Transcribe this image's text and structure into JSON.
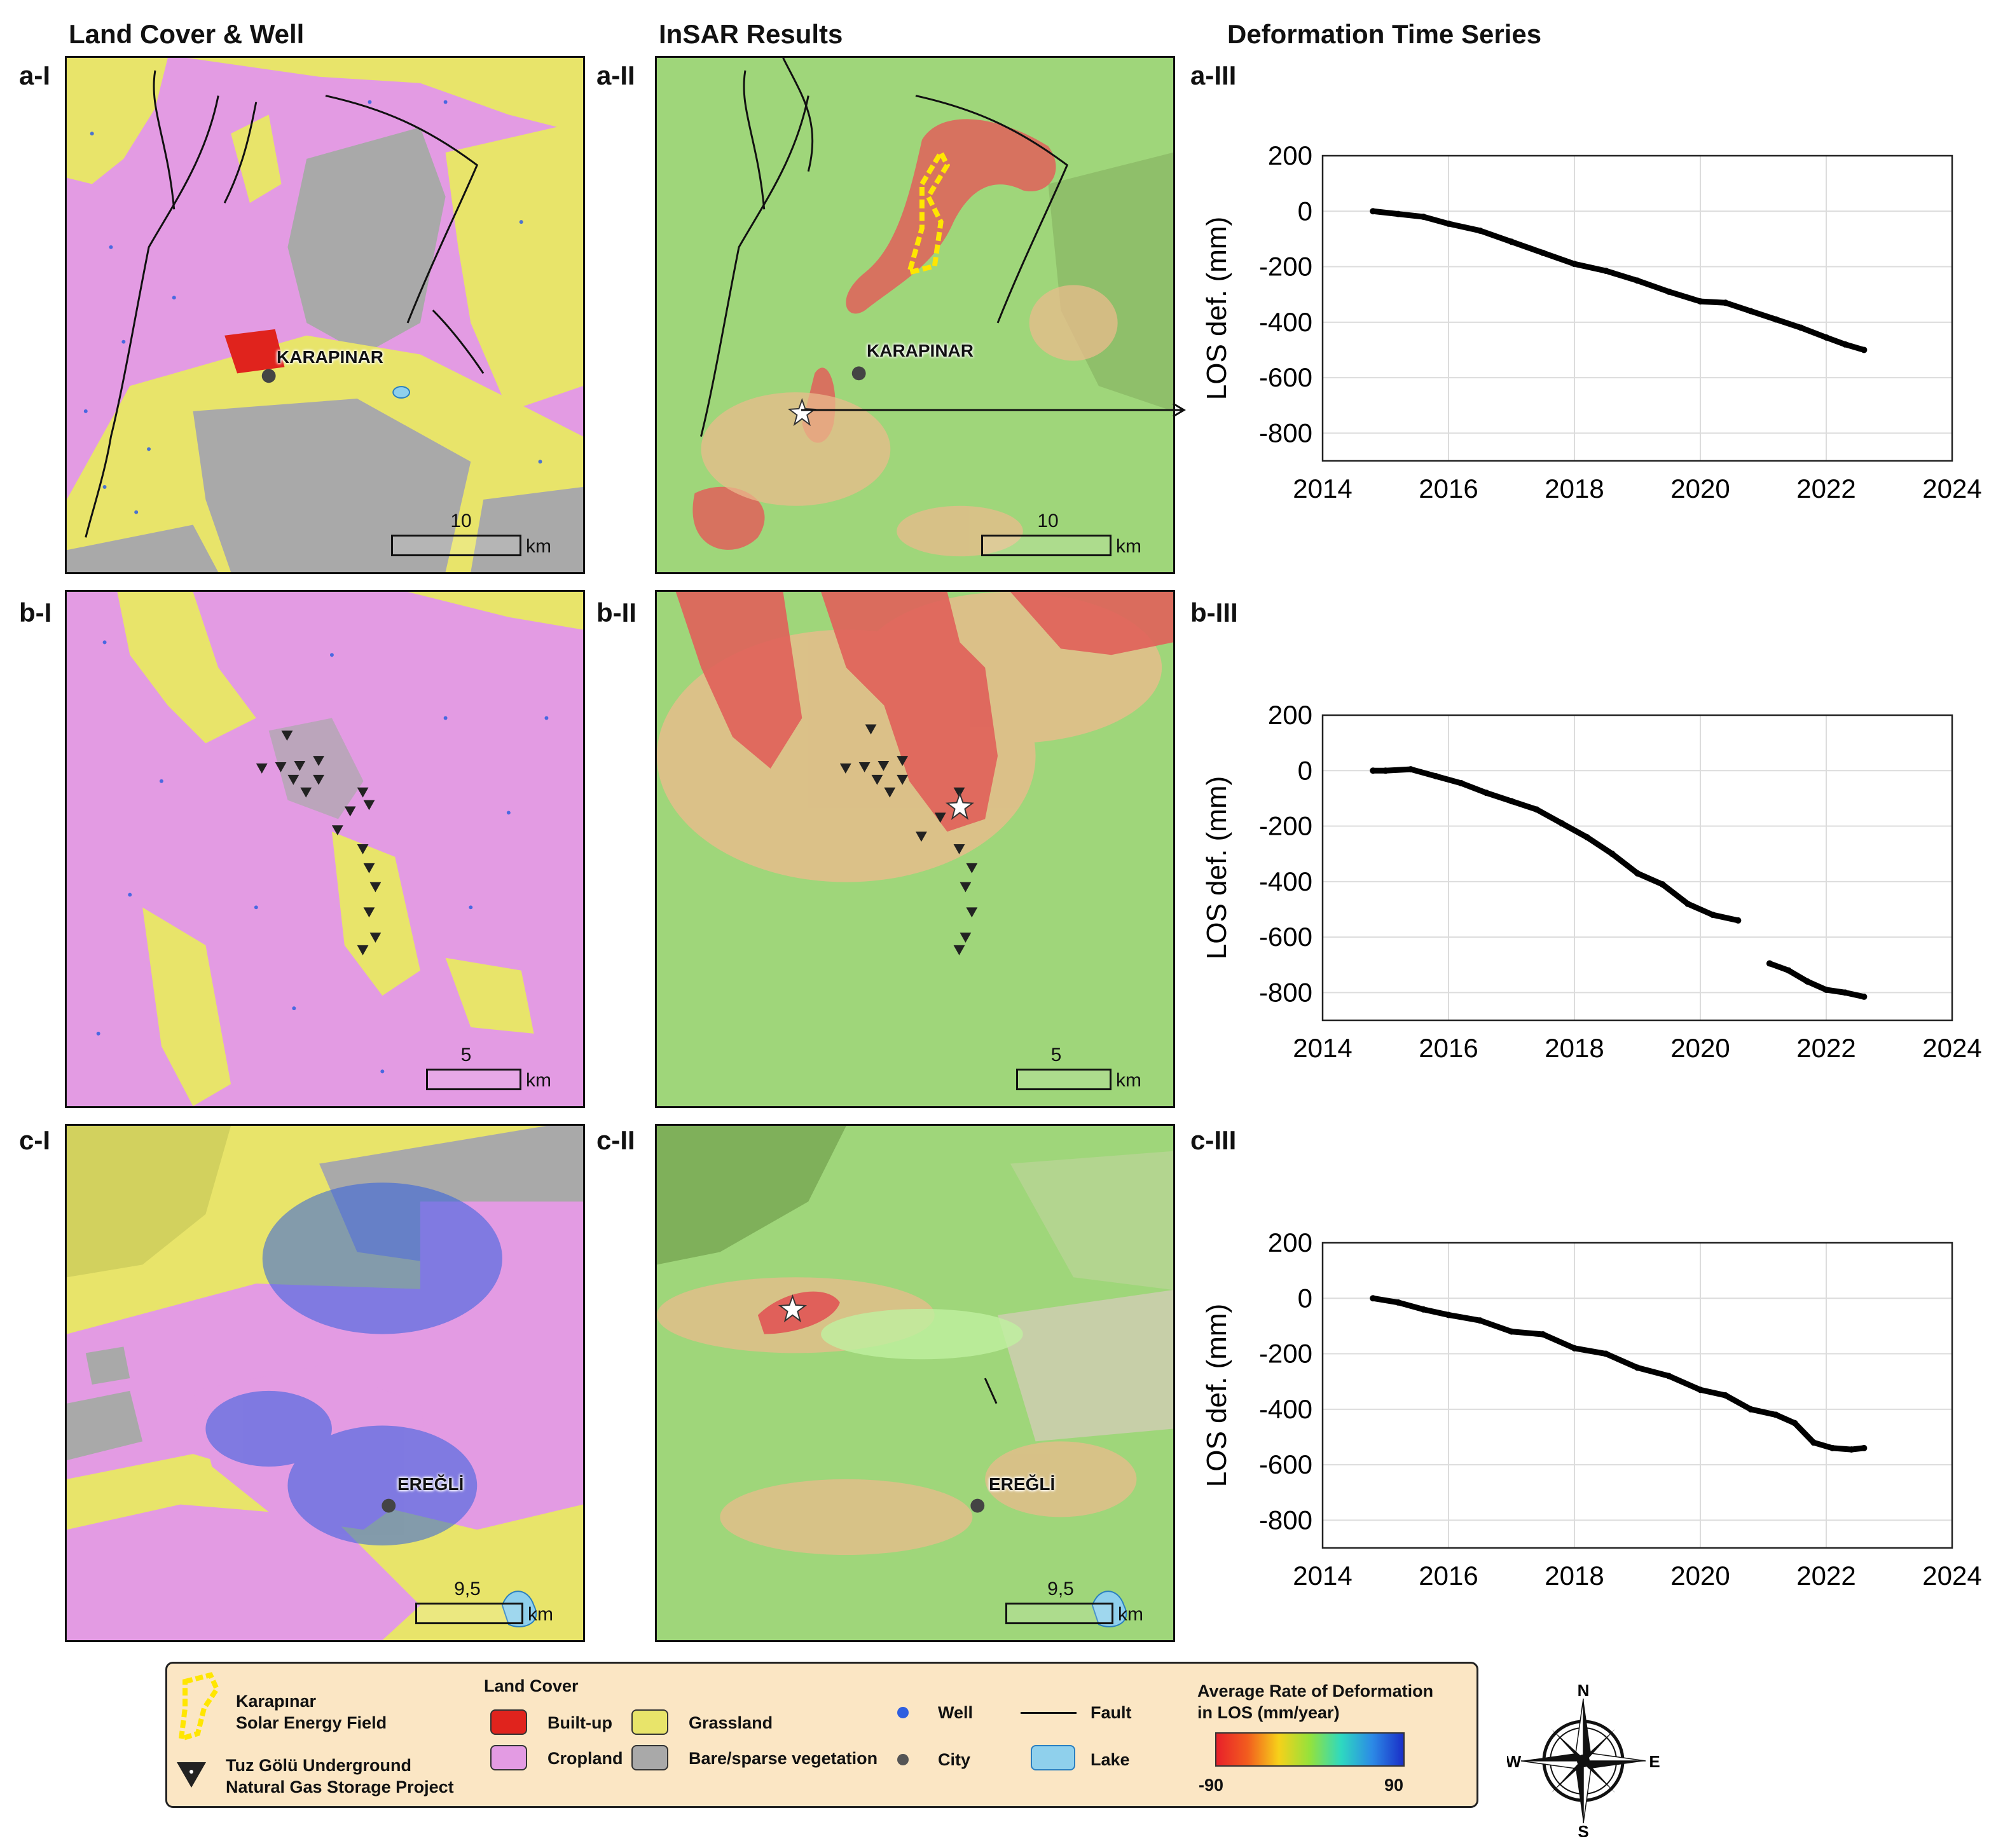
{
  "columns": {
    "land_cover": "Land Cover & Well",
    "insar": "InSAR Results",
    "time_series": "Deformation Time Series"
  },
  "panels": {
    "a1": "a-I",
    "a2": "a-II",
    "a3": "a-III",
    "b1": "b-I",
    "b2": "b-II",
    "b3": "b-III",
    "c1": "c-I",
    "c2": "c-II",
    "c3": "c-III"
  },
  "cities": {
    "karapinar": "KARAPINAR",
    "eregli": "EREĞLİ"
  },
  "scales": {
    "a": {
      "value": "10",
      "unit": "km"
    },
    "b": {
      "value": "5",
      "unit": "km"
    },
    "c": {
      "value": "9,5",
      "unit": "km"
    }
  },
  "colors": {
    "cropland": "#e39be3",
    "grassland": "#e8e46a",
    "bare": "#a9a9a9",
    "builtup": "#e0231d",
    "well": "#2f5fe0",
    "lake": "#8fd0ec",
    "insar_green": "#9fd67a",
    "insar_red": "#e0605a",
    "solar_field": "#ffe600"
  },
  "chart_data": [
    {
      "panel": "a-III",
      "type": "scatter",
      "ylabel": "LOS def. (mm)",
      "xlim": [
        2014,
        2024
      ],
      "ylim": [
        -900,
        200
      ],
      "xticks": [
        2014,
        2016,
        2018,
        2020,
        2022,
        2024
      ],
      "yticks": [
        200,
        0,
        -200,
        -400,
        -600,
        -800
      ],
      "grid": true,
      "series": [
        {
          "x": [
            2014.8,
            2015.2,
            2015.6,
            2016.0,
            2016.5,
            2017.0,
            2017.5,
            2018.0,
            2018.5,
            2019.0,
            2019.5,
            2020.0,
            2020.4,
            2020.8,
            2021.2,
            2021.6,
            2022.0,
            2022.3,
            2022.6
          ],
          "y": [
            0,
            -10,
            -20,
            -45,
            -70,
            -110,
            -150,
            -190,
            -215,
            -250,
            -290,
            -325,
            -330,
            -360,
            -390,
            -420,
            -455,
            -480,
            -500
          ]
        }
      ]
    },
    {
      "panel": "b-III",
      "type": "scatter",
      "ylabel": "LOS def. (mm)",
      "xlim": [
        2014,
        2024
      ],
      "ylim": [
        -900,
        200
      ],
      "xticks": [
        2014,
        2016,
        2018,
        2020,
        2022,
        2024
      ],
      "yticks": [
        200,
        0,
        -200,
        -400,
        -600,
        -800
      ],
      "grid": true,
      "series": [
        {
          "x": [
            2014.8,
            2015.0,
            2015.4,
            2015.8,
            2016.2,
            2016.6,
            2017.0,
            2017.4,
            2017.8,
            2018.2,
            2018.6,
            2019.0,
            2019.4,
            2019.8,
            2020.2,
            2020.6
          ],
          "y": [
            0,
            0,
            5,
            -20,
            -45,
            -80,
            -110,
            -140,
            -190,
            -240,
            -300,
            -370,
            -410,
            -480,
            -520,
            -540
          ]
        },
        {
          "x": [
            2021.1,
            2021.4,
            2021.7,
            2022.0,
            2022.3,
            2022.6
          ],
          "y": [
            -695,
            -720,
            -760,
            -790,
            -800,
            -815
          ]
        }
      ]
    },
    {
      "panel": "c-III",
      "type": "scatter",
      "ylabel": "LOS def. (mm)",
      "xlim": [
        2014,
        2024
      ],
      "ylim": [
        -900,
        200
      ],
      "xticks": [
        2014,
        2016,
        2018,
        2020,
        2022,
        2024
      ],
      "yticks": [
        200,
        0,
        -200,
        -400,
        -600,
        -800
      ],
      "grid": true,
      "series": [
        {
          "x": [
            2014.8,
            2015.2,
            2015.6,
            2016.0,
            2016.5,
            2017.0,
            2017.5,
            2018.0,
            2018.5,
            2019.0,
            2019.5,
            2020.0,
            2020.4,
            2020.8,
            2021.2,
            2021.5,
            2021.8,
            2022.1,
            2022.4,
            2022.6
          ],
          "y": [
            0,
            -15,
            -40,
            -60,
            -80,
            -120,
            -130,
            -180,
            -200,
            -250,
            -280,
            -330,
            -350,
            -400,
            -420,
            -450,
            -520,
            -540,
            -545,
            -540
          ]
        }
      ]
    }
  ],
  "legend": {
    "solar_field": "Karapınar\nSolar Energy Field",
    "tuz_golu": "Tuz Gölü Underground\nNatural Gas Storage Project",
    "land_cover_title": "Land Cover",
    "builtup": "Built-up",
    "cropland": "Cropland",
    "grassland": "Grassland",
    "bare": "Bare/sparse vegetation",
    "well": "Well",
    "city": "City",
    "fault": "Fault",
    "lake": "Lake",
    "rate_title": "Average Rate of Deformation\nin LOS (mm/year)",
    "rate_min": "-90",
    "rate_max": "90"
  },
  "compass": {
    "n": "N",
    "s": "S",
    "e": "E",
    "w": "W"
  }
}
